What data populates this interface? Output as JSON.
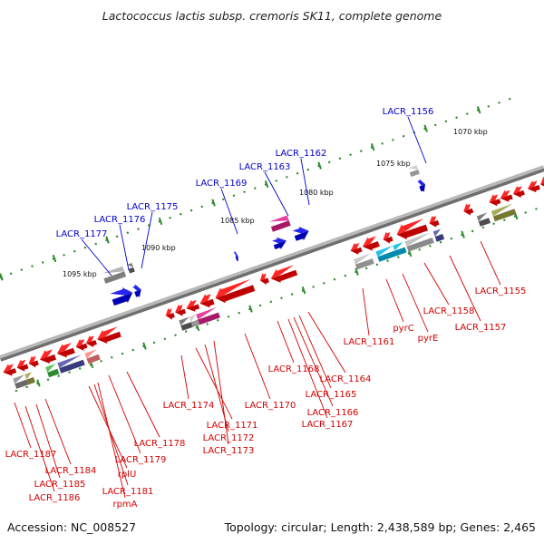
{
  "title": "Lactococcus lactis subsp. cremoris SK11, complete genome",
  "footer": {
    "accession": "Accession: NC_008527",
    "topology": "Topology: circular; Length: 2,438,589 bp; Genes: 2,465"
  },
  "colors": {
    "backbone": "#8c8c8c",
    "forward_label": "#0000cc",
    "reverse_label": "#d40000",
    "tick": "#2e8b2e"
  },
  "scale_labels": [
    "1095 kbp",
    "1090 kbp",
    "1085 kbp",
    "1080 kbp",
    "1075 kbp",
    "1070 kbp"
  ],
  "forward_genes": [
    "LACR_1177",
    "LACR_1176",
    "LACR_1175",
    "LACR_1169",
    "LACR_1163",
    "LACR_1162",
    "LACR_1156"
  ],
  "reverse_genes": [
    "LACR_1187",
    "LACR_1184",
    "LACR_1185",
    "LACR_1186",
    "rplU",
    "LACR_1181",
    "rpmA",
    "LACR_1179",
    "LACR_1178",
    "LACR_1174",
    "LACR_1171",
    "LACR_1172",
    "LACR_1173",
    "LACR_1170",
    "LACR_1168",
    "LACR_1164",
    "LACR_1165",
    "LACR_1166",
    "LACR_1167",
    "LACR_1161",
    "pyrC",
    "pyrE",
    "LACR_1158",
    "LACR_1157",
    "LACR_1155"
  ]
}
